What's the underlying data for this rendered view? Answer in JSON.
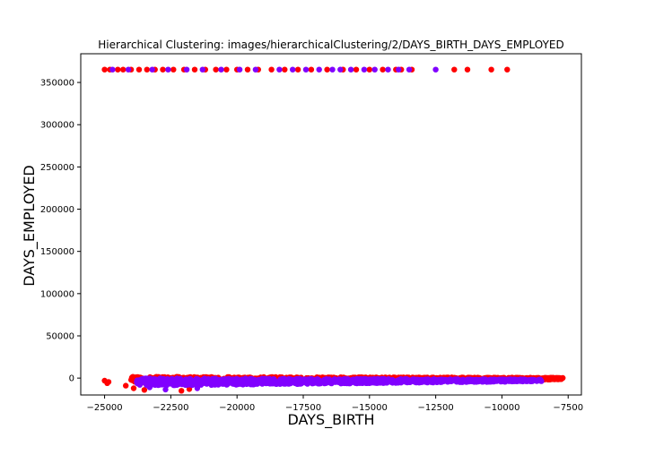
{
  "chart_data": {
    "type": "scatter",
    "title": "Hierarchical Clustering: images/hierarchicalClustering/2/DAYS_BIRTH_DAYS_EMPLOYED",
    "xlabel": "DAYS_BIRTH",
    "ylabel": "DAYS_EMPLOYED",
    "xlim": [
      -25900,
      -7000
    ],
    "ylim": [
      -20000,
      384000
    ],
    "x_ticks": [
      -25000,
      -22500,
      -20000,
      -17500,
      -15000,
      -12500,
      -10000,
      -7500
    ],
    "x_tick_labels": [
      "−25000",
      "−22500",
      "−20000",
      "−17500",
      "−15000",
      "−12500",
      "−10000",
      "−7500"
    ],
    "y_ticks": [
      0,
      50000,
      100000,
      150000,
      200000,
      250000,
      300000,
      350000
    ],
    "y_tick_labels": [
      "0",
      "50000",
      "100000",
      "150000",
      "200000",
      "250000",
      "300000",
      "350000"
    ],
    "grid": false,
    "colors": {
      "cluster_a": "#ff0000",
      "cluster_b": "#8000ff"
    },
    "series": [
      {
        "color": "#ff0000",
        "band": {
          "x_range": [
            -24000,
            -7700
          ],
          "y_center": 0,
          "y_spread": 4500,
          "count": 1400
        },
        "points": [
          {
            "x": -25000,
            "y": 365243
          },
          {
            "x": -24800,
            "y": 365243
          },
          {
            "x": -24500,
            "y": 365243
          },
          {
            "x": -24300,
            "y": 365243
          },
          {
            "x": -24000,
            "y": 365243
          },
          {
            "x": -23700,
            "y": 365243
          },
          {
            "x": -23400,
            "y": 365243
          },
          {
            "x": -23100,
            "y": 365243
          },
          {
            "x": -22800,
            "y": 365243
          },
          {
            "x": -22400,
            "y": 365243
          },
          {
            "x": -22000,
            "y": 365243
          },
          {
            "x": -21600,
            "y": 365243
          },
          {
            "x": -21200,
            "y": 365243
          },
          {
            "x": -20800,
            "y": 365243
          },
          {
            "x": -20400,
            "y": 365243
          },
          {
            "x": -20000,
            "y": 365243
          },
          {
            "x": -19600,
            "y": 365243
          },
          {
            "x": -19200,
            "y": 365243
          },
          {
            "x": -18700,
            "y": 365243
          },
          {
            "x": -18200,
            "y": 365243
          },
          {
            "x": -17700,
            "y": 365243
          },
          {
            "x": -17200,
            "y": 365243
          },
          {
            "x": -16600,
            "y": 365243
          },
          {
            "x": -16000,
            "y": 365243
          },
          {
            "x": -15500,
            "y": 365243
          },
          {
            "x": -15000,
            "y": 365243
          },
          {
            "x": -14500,
            "y": 365243
          },
          {
            "x": -14000,
            "y": 365243
          },
          {
            "x": -13800,
            "y": 365243
          },
          {
            "x": -13400,
            "y": 365243
          },
          {
            "x": -11800,
            "y": 365243
          },
          {
            "x": -11300,
            "y": 365243
          },
          {
            "x": -10400,
            "y": 365243
          },
          {
            "x": -9800,
            "y": 365243
          },
          {
            "x": -25000,
            "y": -3000
          },
          {
            "x": -24900,
            "y": -6000
          },
          {
            "x": -24850,
            "y": -4500
          },
          {
            "x": -24200,
            "y": -9000
          },
          {
            "x": -23900,
            "y": -12000
          },
          {
            "x": -23500,
            "y": -14000
          },
          {
            "x": -22100,
            "y": -15000
          },
          {
            "x": -21800,
            "y": -13000
          }
        ]
      },
      {
        "color": "#8000ff",
        "band": {
          "x_range": [
            -23800,
            -8500
          ],
          "y_center": -2000,
          "y_spread": 5000,
          "count": 1100
        },
        "points": [
          {
            "x": -24700,
            "y": 365243
          },
          {
            "x": -24100,
            "y": 365243
          },
          {
            "x": -23200,
            "y": 365243
          },
          {
            "x": -22600,
            "y": 365243
          },
          {
            "x": -21900,
            "y": 365243
          },
          {
            "x": -21300,
            "y": 365243
          },
          {
            "x": -20600,
            "y": 365243
          },
          {
            "x": -19900,
            "y": 365243
          },
          {
            "x": -19300,
            "y": 365243
          },
          {
            "x": -18400,
            "y": 365243
          },
          {
            "x": -17900,
            "y": 365243
          },
          {
            "x": -17400,
            "y": 365243
          },
          {
            "x": -16900,
            "y": 365243
          },
          {
            "x": -16400,
            "y": 365243
          },
          {
            "x": -16100,
            "y": 365243
          },
          {
            "x": -15700,
            "y": 365243
          },
          {
            "x": -15200,
            "y": 365243
          },
          {
            "x": -14800,
            "y": 365243
          },
          {
            "x": -14300,
            "y": 365243
          },
          {
            "x": -13900,
            "y": 365243
          },
          {
            "x": -13500,
            "y": 365243
          },
          {
            "x": -12500,
            "y": 365243
          },
          {
            "x": -23300,
            "y": -11000
          },
          {
            "x": -22700,
            "y": -13500
          },
          {
            "x": -21500,
            "y": -12000
          }
        ]
      }
    ]
  }
}
